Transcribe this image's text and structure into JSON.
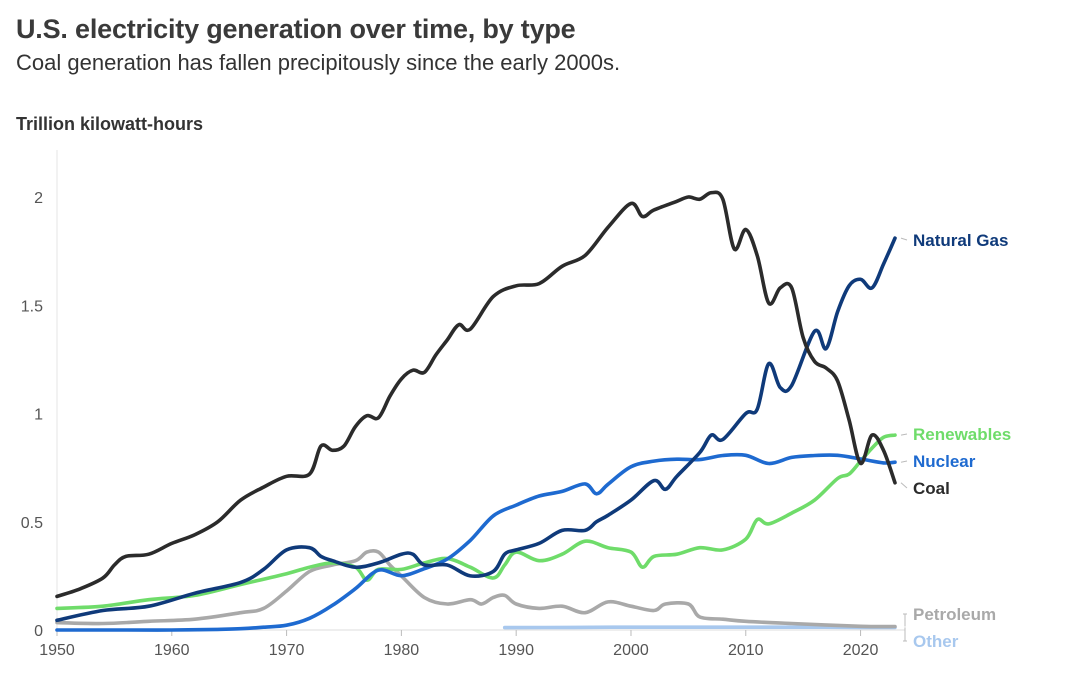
{
  "chart_data": {
    "type": "line",
    "title": "U.S. electricity generation over time, by type",
    "subtitle": "Coal generation has fallen precipitously since the early 2000s.",
    "ylabel": "Trillion kilowatt-hours",
    "xlabel": "",
    "xlim": [
      1950,
      2023
    ],
    "ylim": [
      0,
      2.2
    ],
    "x_ticks": [
      1950,
      1960,
      1970,
      1980,
      1990,
      2000,
      2010,
      2020
    ],
    "y_ticks": [
      {
        "value": 0,
        "label": "0"
      },
      {
        "value": 0.5,
        "label": "0.5"
      },
      {
        "value": 1,
        "label": "1"
      },
      {
        "value": 1.5,
        "label": "1.5"
      },
      {
        "value": 2,
        "label": "2"
      }
    ],
    "series": [
      {
        "name": "Coal",
        "color": "#2b2b2b",
        "x": [
          1950,
          1952,
          1954,
          1955,
          1956,
          1958,
          1960,
          1962,
          1964,
          1966,
          1968,
          1970,
          1972,
          1973,
          1974,
          1975,
          1976,
          1977,
          1978,
          1979,
          1980,
          1981,
          1982,
          1983,
          1984,
          1985,
          1986,
          1988,
          1990,
          1992,
          1994,
          1996,
          1998,
          2000,
          2001,
          2002,
          2004,
          2005,
          2006,
          2007,
          2008,
          2009,
          2010,
          2011,
          2012,
          2013,
          2014,
          2015,
          2016,
          2017,
          2018,
          2019,
          2020,
          2021,
          2022,
          2023
        ],
        "values": [
          0.155,
          0.19,
          0.24,
          0.3,
          0.34,
          0.35,
          0.4,
          0.44,
          0.5,
          0.6,
          0.66,
          0.71,
          0.72,
          0.85,
          0.83,
          0.85,
          0.94,
          0.99,
          0.98,
          1.08,
          1.16,
          1.2,
          1.19,
          1.27,
          1.34,
          1.41,
          1.39,
          1.54,
          1.59,
          1.6,
          1.68,
          1.73,
          1.86,
          1.97,
          1.91,
          1.94,
          1.98,
          2.0,
          1.99,
          2.02,
          1.99,
          1.76,
          1.85,
          1.73,
          1.51,
          1.58,
          1.58,
          1.35,
          1.24,
          1.21,
          1.15,
          0.97,
          0.77,
          0.9,
          0.83,
          0.68
        ]
      },
      {
        "name": "Natural Gas",
        "color": "#0f3a7a",
        "x": [
          1950,
          1954,
          1958,
          1962,
          1966,
          1968,
          1970,
          1972,
          1973,
          1974,
          1976,
          1978,
          1980,
          1981,
          1982,
          1984,
          1986,
          1988,
          1989,
          1990,
          1992,
          1994,
          1996,
          1997,
          1998,
          2000,
          2002,
          2003,
          2004,
          2006,
          2007,
          2008,
          2010,
          2011,
          2012,
          2013,
          2014,
          2016,
          2017,
          2018,
          2019,
          2020,
          2021,
          2022,
          2023
        ],
        "values": [
          0.045,
          0.09,
          0.11,
          0.17,
          0.22,
          0.28,
          0.37,
          0.38,
          0.34,
          0.32,
          0.29,
          0.31,
          0.35,
          0.35,
          0.3,
          0.3,
          0.25,
          0.27,
          0.35,
          0.37,
          0.4,
          0.46,
          0.46,
          0.5,
          0.53,
          0.6,
          0.69,
          0.65,
          0.71,
          0.82,
          0.9,
          0.88,
          1.0,
          1.02,
          1.23,
          1.12,
          1.13,
          1.38,
          1.3,
          1.47,
          1.59,
          1.62,
          1.58,
          1.69,
          1.81
        ]
      },
      {
        "name": "Nuclear",
        "color": "#1e6ad0",
        "x": [
          1950,
          1956,
          1960,
          1964,
          1966,
          1968,
          1970,
          1972,
          1974,
          1976,
          1978,
          1980,
          1982,
          1984,
          1986,
          1988,
          1990,
          1992,
          1994,
          1996,
          1997,
          1998,
          2000,
          2002,
          2004,
          2006,
          2008,
          2010,
          2012,
          2014,
          2016,
          2018,
          2020,
          2022,
          2023
        ],
        "values": [
          0.0,
          0.0,
          0.0,
          0.003,
          0.006,
          0.013,
          0.022,
          0.054,
          0.114,
          0.191,
          0.276,
          0.251,
          0.283,
          0.328,
          0.414,
          0.527,
          0.577,
          0.619,
          0.64,
          0.675,
          0.629,
          0.673,
          0.754,
          0.78,
          0.789,
          0.787,
          0.806,
          0.807,
          0.769,
          0.797,
          0.806,
          0.807,
          0.79,
          0.772,
          0.775
        ]
      },
      {
        "name": "Renewables",
        "color": "#6fdc6a",
        "x": [
          1950,
          1954,
          1958,
          1962,
          1966,
          1970,
          1972,
          1974,
          1976,
          1977,
          1978,
          1980,
          1982,
          1984,
          1986,
          1988,
          1989,
          1990,
          1992,
          1994,
          1996,
          1998,
          2000,
          2001,
          2002,
          2004,
          2006,
          2008,
          2010,
          2011,
          2012,
          2014,
          2016,
          2018,
          2019,
          2020,
          2021,
          2022,
          2023
        ],
        "values": [
          0.1,
          0.11,
          0.14,
          0.16,
          0.21,
          0.26,
          0.29,
          0.31,
          0.29,
          0.23,
          0.28,
          0.28,
          0.31,
          0.33,
          0.29,
          0.24,
          0.3,
          0.36,
          0.32,
          0.35,
          0.41,
          0.38,
          0.36,
          0.29,
          0.34,
          0.35,
          0.38,
          0.37,
          0.42,
          0.51,
          0.49,
          0.54,
          0.6,
          0.7,
          0.72,
          0.78,
          0.84,
          0.89,
          0.9
        ]
      },
      {
        "name": "Petroleum",
        "color": "#a9a9a9",
        "x": [
          1950,
          1954,
          1958,
          1962,
          1966,
          1968,
          1970,
          1972,
          1974,
          1976,
          1977,
          1978,
          1979,
          1980,
          1982,
          1984,
          1986,
          1987,
          1988,
          1989,
          1990,
          1992,
          1994,
          1996,
          1998,
          2000,
          2002,
          2003,
          2005,
          2006,
          2008,
          2010,
          2014,
          2020,
          2023
        ],
        "values": [
          0.034,
          0.03,
          0.04,
          0.05,
          0.08,
          0.1,
          0.18,
          0.27,
          0.3,
          0.32,
          0.36,
          0.36,
          0.3,
          0.25,
          0.15,
          0.12,
          0.14,
          0.12,
          0.15,
          0.16,
          0.12,
          0.1,
          0.11,
          0.08,
          0.13,
          0.11,
          0.09,
          0.12,
          0.12,
          0.06,
          0.05,
          0.04,
          0.03,
          0.017,
          0.016
        ]
      },
      {
        "name": "Other",
        "color": "#a8c8ee",
        "x": [
          1989,
          1995,
          2000,
          2005,
          2010,
          2015,
          2020,
          2023
        ],
        "values": [
          0.011,
          0.012,
          0.013,
          0.013,
          0.013,
          0.013,
          0.012,
          0.012
        ]
      }
    ],
    "legend": "right-end labels"
  }
}
